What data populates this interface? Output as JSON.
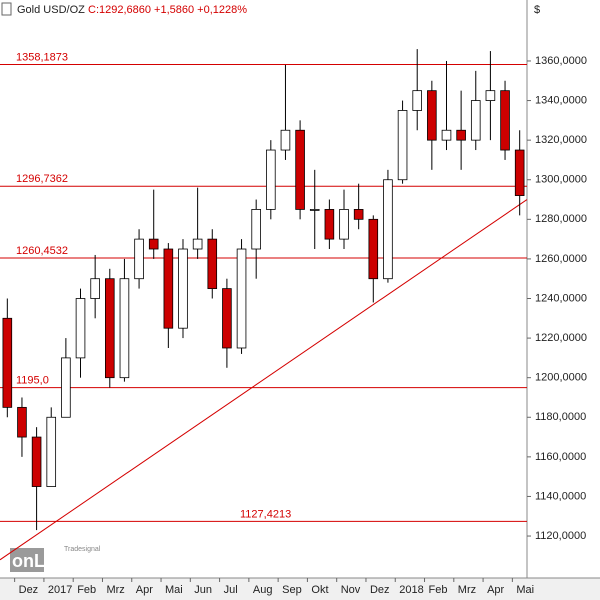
{
  "chart_data": {
    "type": "candlestick",
    "title": "Gold USD/OZ",
    "subtitle": "C:1292,6860 +1,5860 +0,1228%",
    "y_unit": "$",
    "watermark": "onLine",
    "watermark_sub": "Tradesignal",
    "categories": [
      null,
      "Dez",
      null,
      "2017",
      null,
      "Feb",
      null,
      "Mrz",
      null,
      "Apr",
      null,
      "Mai",
      null,
      "Jun",
      null,
      "Jul",
      null,
      "Aug",
      null,
      "Sep",
      null,
      "Okt",
      null,
      "Nov",
      null,
      "Dez",
      null,
      "2018",
      null,
      "Feb",
      null,
      "Mrz",
      null,
      "Apr",
      null,
      "Mai"
    ],
    "open": [
      1230,
      1185,
      1170,
      1145,
      1180,
      1210,
      1240,
      1250,
      1200,
      1250,
      1270,
      1265,
      1225,
      1265,
      1270,
      1245,
      1215,
      1265,
      1285,
      1315,
      1325,
      1285,
      1285,
      1270,
      1285,
      1280,
      1250,
      1300,
      1335,
      1345,
      1320,
      1325,
      1320,
      1340,
      1345,
      1315
    ],
    "high": [
      1240,
      1190,
      1175,
      1185,
      1220,
      1245,
      1262,
      1255,
      1260,
      1275,
      1295,
      1268,
      1270,
      1296,
      1275,
      1250,
      1270,
      1290,
      1320,
      1358,
      1330,
      1305,
      1290,
      1295,
      1298,
      1282,
      1305,
      1340,
      1366,
      1350,
      1360,
      1345,
      1355,
      1365,
      1350,
      1325
    ],
    "low": [
      1180,
      1160,
      1123,
      1145,
      1180,
      1200,
      1230,
      1195,
      1198,
      1245,
      1260,
      1215,
      1220,
      1260,
      1240,
      1205,
      1212,
      1250,
      1280,
      1310,
      1280,
      1265,
      1265,
      1265,
      1275,
      1238,
      1248,
      1298,
      1325,
      1305,
      1315,
      1305,
      1315,
      1320,
      1310,
      1282
    ],
    "close": [
      1185,
      1170,
      1145,
      1180,
      1210,
      1240,
      1250,
      1200,
      1250,
      1270,
      1265,
      1225,
      1265,
      1270,
      1245,
      1215,
      1265,
      1285,
      1315,
      1325,
      1285,
      1285,
      1270,
      1285,
      1280,
      1250,
      1300,
      1335,
      1345,
      1320,
      1325,
      1320,
      1340,
      1345,
      1315,
      1292
    ],
    "up_color": "#ffffff",
    "down_color": "#cc0000",
    "levels": [
      {
        "value": 1358.1873,
        "label": "1358,1873"
      },
      {
        "value": 1296.7362,
        "label": "1296,7362"
      },
      {
        "value": 1260.4532,
        "label": "1260,4532"
      },
      {
        "value": 1195.0,
        "label": "1195,0"
      },
      {
        "value": 1127.4213,
        "label": "1127,4213"
      }
    ],
    "level_color": "#d40000",
    "trendline": [
      1108,
      1290
    ],
    "ylim": [
      1098.8,
      1390.8
    ],
    "yticks": [
      {
        "value": 1120,
        "label": "1120,0000"
      },
      {
        "value": 1140,
        "label": "1140,0000"
      },
      {
        "value": 1160,
        "label": "1160,0000"
      },
      {
        "value": 1180,
        "label": "1180,0000"
      },
      {
        "value": 1200,
        "label": "1200,0000"
      },
      {
        "value": 1220,
        "label": "1220,0000"
      },
      {
        "value": 1240,
        "label": "1240,0000"
      },
      {
        "value": 1260,
        "label": "1260,0000"
      },
      {
        "value": 1280,
        "label": "1280,0000"
      },
      {
        "value": 1300,
        "label": "1300,0000"
      },
      {
        "value": 1320,
        "label": "1320,0000"
      },
      {
        "value": 1340,
        "label": "1340,0000"
      },
      {
        "value": 1360,
        "label": "1360,0000"
      }
    ]
  }
}
